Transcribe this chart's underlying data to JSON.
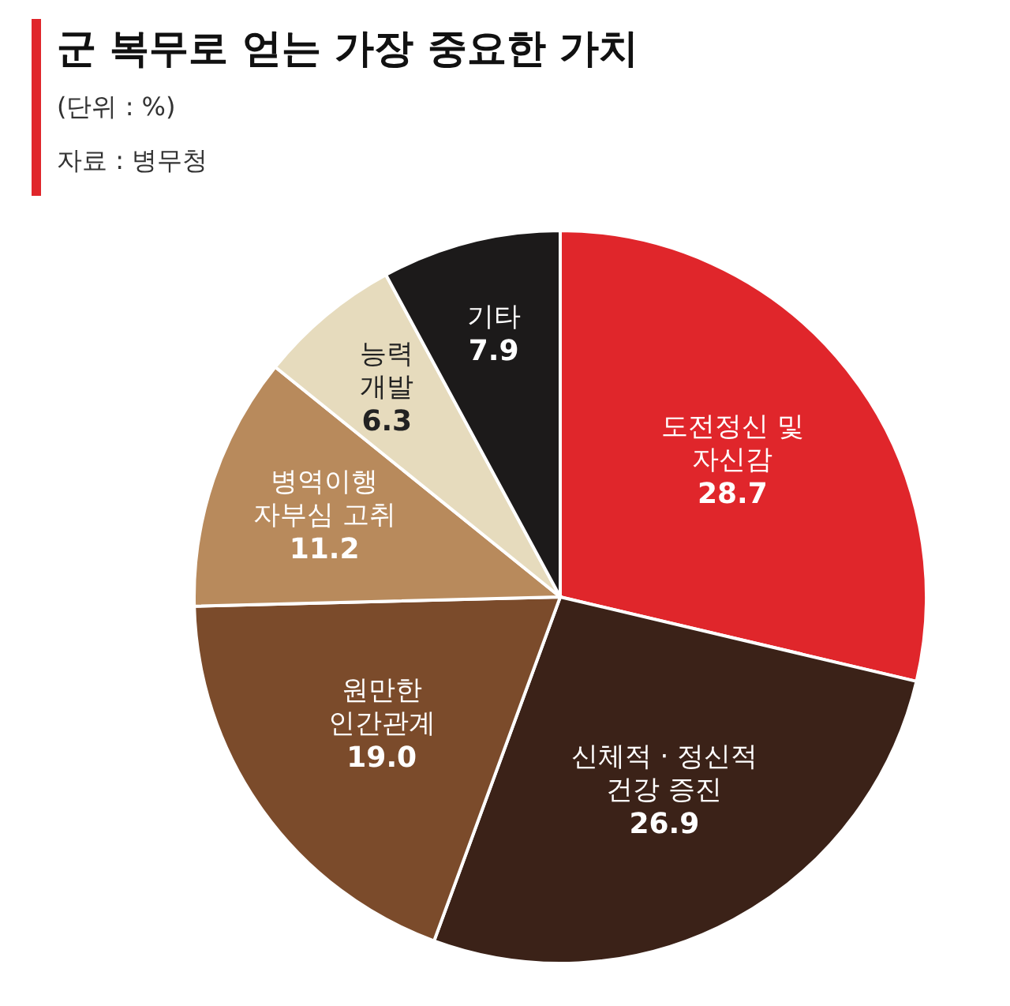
{
  "chart_data": {
    "type": "pie",
    "title": "군 복무로 얻는 가장 중요한 가치",
    "subtitle": "(단위 : %)",
    "annotations": [
      "자료 : 병무청"
    ],
    "categories": [
      "도전정신 및 자신감",
      "신체적 · 정신적 건강 증진",
      "원만한 인간관계",
      "병역이행 자부심 고취",
      "능력 개발",
      "기타"
    ],
    "values": [
      28.7,
      26.9,
      19.0,
      11.2,
      6.3,
      7.9
    ],
    "colors": [
      "#e0262b",
      "#3b2218",
      "#7b4b2b",
      "#b88a5c",
      "#e6dbbd",
      "#1c1a1a"
    ],
    "value_labels": [
      "28.7",
      "26.9",
      "19.0",
      "11.2",
      "6.3",
      "7.9"
    ]
  }
}
